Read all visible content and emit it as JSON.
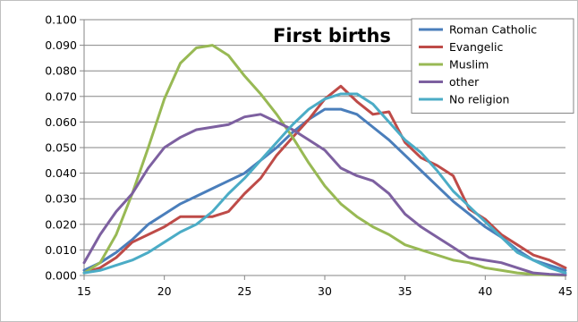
{
  "chart_data": {
    "type": "line",
    "title": "First births",
    "xlabel": "",
    "ylabel": "",
    "xlim": [
      15,
      45
    ],
    "ylim": [
      0,
      0.1
    ],
    "x_ticks": [
      "15",
      "20",
      "25",
      "30",
      "35",
      "40",
      "45"
    ],
    "y_ticks": [
      "0.000",
      "0.010",
      "0.020",
      "0.030",
      "0.040",
      "0.050",
      "0.060",
      "0.070",
      "0.080",
      "0.090",
      "0.100"
    ],
    "grid": true,
    "legend_position": "top-right",
    "x": [
      15,
      16,
      17,
      18,
      19,
      20,
      21,
      22,
      23,
      24,
      25,
      26,
      27,
      28,
      29,
      30,
      31,
      32,
      33,
      34,
      35,
      36,
      37,
      38,
      39,
      40,
      41,
      42,
      43,
      44,
      45
    ],
    "series": [
      {
        "name": "Roman Catholic",
        "color": "#4a7ebb",
        "values": [
          0.002,
          0.005,
          0.009,
          0.014,
          0.02,
          0.024,
          0.028,
          0.031,
          0.034,
          0.037,
          0.04,
          0.045,
          0.05,
          0.056,
          0.061,
          0.065,
          0.065,
          0.063,
          0.058,
          0.053,
          0.047,
          0.041,
          0.035,
          0.029,
          0.024,
          0.019,
          0.015,
          0.01,
          0.006,
          0.004,
          0.002
        ]
      },
      {
        "name": "Evangelic",
        "color": "#be4b48",
        "values": [
          0.001,
          0.003,
          0.007,
          0.013,
          0.016,
          0.019,
          0.023,
          0.023,
          0.023,
          0.025,
          0.032,
          0.038,
          0.047,
          0.054,
          0.061,
          0.069,
          0.074,
          0.068,
          0.063,
          0.064,
          0.052,
          0.046,
          0.043,
          0.039,
          0.026,
          0.022,
          0.016,
          0.012,
          0.008,
          0.006,
          0.003
        ]
      },
      {
        "name": "Muslim",
        "color": "#98b954",
        "values": [
          0.001,
          0.005,
          0.016,
          0.032,
          0.05,
          0.069,
          0.083,
          0.089,
          0.09,
          0.086,
          0.078,
          0.071,
          0.063,
          0.054,
          0.044,
          0.035,
          0.028,
          0.023,
          0.019,
          0.016,
          0.012,
          0.01,
          0.008,
          0.006,
          0.005,
          0.003,
          0.002,
          0.001,
          0.0005,
          0.0002,
          0.0001
        ]
      },
      {
        "name": "other",
        "color": "#7d60a0",
        "values": [
          0.005,
          0.016,
          0.025,
          0.032,
          0.042,
          0.05,
          0.054,
          0.057,
          0.058,
          0.059,
          0.062,
          0.063,
          0.06,
          0.057,
          0.053,
          0.049,
          0.042,
          0.039,
          0.037,
          0.032,
          0.024,
          0.019,
          0.015,
          0.011,
          0.007,
          0.006,
          0.005,
          0.003,
          0.001,
          0.0005,
          0.0002
        ]
      },
      {
        "name": "No religion",
        "color": "#4bacc6",
        "values": [
          0.001,
          0.002,
          0.004,
          0.006,
          0.009,
          0.013,
          0.017,
          0.02,
          0.025,
          0.032,
          0.038,
          0.045,
          0.052,
          0.059,
          0.065,
          0.069,
          0.071,
          0.071,
          0.067,
          0.06,
          0.053,
          0.048,
          0.041,
          0.033,
          0.027,
          0.021,
          0.015,
          0.009,
          0.006,
          0.003,
          0.001
        ]
      }
    ]
  }
}
